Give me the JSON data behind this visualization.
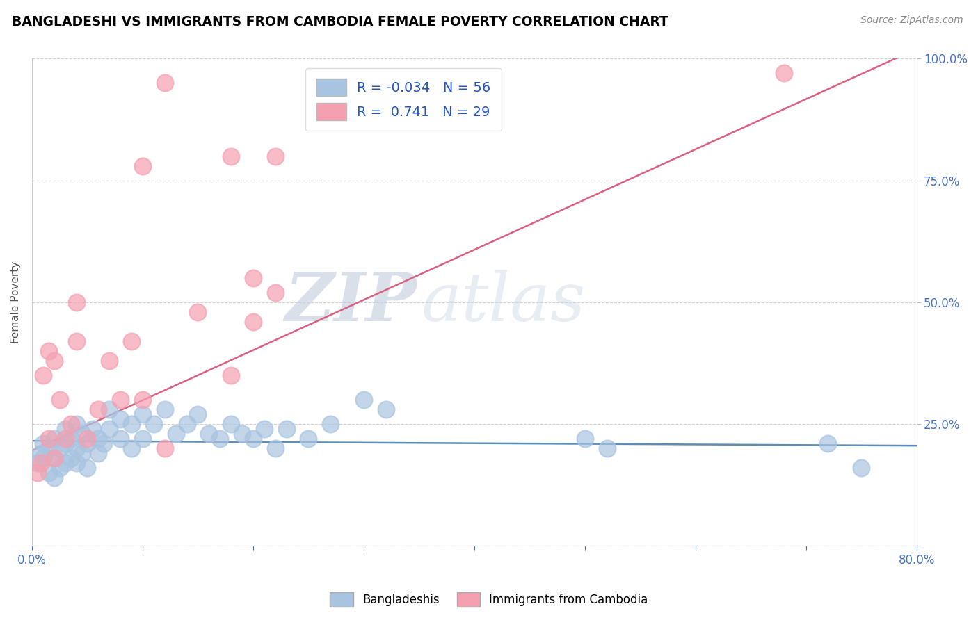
{
  "title": "BANGLADESHI VS IMMIGRANTS FROM CAMBODIA FEMALE POVERTY CORRELATION CHART",
  "source": "Source: ZipAtlas.com",
  "ylabel": "Female Poverty",
  "xlim": [
    0.0,
    0.8
  ],
  "ylim": [
    0.0,
    1.0
  ],
  "xticks": [
    0.0,
    0.1,
    0.2,
    0.3,
    0.4,
    0.5,
    0.6,
    0.7,
    0.8
  ],
  "xticklabels": [
    "0.0%",
    "",
    "",
    "",
    "",
    "",
    "",
    "",
    "80.0%"
  ],
  "ytick_positions": [
    0.0,
    0.25,
    0.5,
    0.75,
    1.0
  ],
  "yticklabels_right": [
    "",
    "25.0%",
    "50.0%",
    "75.0%",
    "100.0%"
  ],
  "blue_R": -0.034,
  "blue_N": 56,
  "pink_R": 0.741,
  "pink_N": 29,
  "blue_color": "#a8c4e0",
  "pink_color": "#f4a0b0",
  "blue_line_color": "#5b8db8",
  "pink_line_color": "#d96080",
  "legend_blue_label": "Bangladeshis",
  "legend_pink_label": "Immigrants from Cambodia",
  "watermark_zip": "ZIP",
  "watermark_atlas": "atlas",
  "blue_line_y0": 0.215,
  "blue_line_y1": 0.205,
  "pink_line_y0": 0.195,
  "pink_line_y1": 1.02,
  "blue_scatter_x": [
    0.005,
    0.008,
    0.01,
    0.01,
    0.015,
    0.015,
    0.02,
    0.02,
    0.02,
    0.025,
    0.025,
    0.03,
    0.03,
    0.03,
    0.035,
    0.035,
    0.04,
    0.04,
    0.04,
    0.045,
    0.045,
    0.05,
    0.05,
    0.055,
    0.06,
    0.06,
    0.065,
    0.07,
    0.07,
    0.08,
    0.08,
    0.09,
    0.09,
    0.1,
    0.1,
    0.11,
    0.12,
    0.13,
    0.14,
    0.15,
    0.16,
    0.17,
    0.18,
    0.19,
    0.2,
    0.21,
    0.22,
    0.23,
    0.25,
    0.27,
    0.3,
    0.32,
    0.5,
    0.52,
    0.72,
    0.75
  ],
  "blue_scatter_y": [
    0.17,
    0.19,
    0.21,
    0.18,
    0.15,
    0.2,
    0.18,
    0.22,
    0.14,
    0.16,
    0.2,
    0.17,
    0.21,
    0.24,
    0.18,
    0.22,
    0.2,
    0.17,
    0.25,
    0.19,
    0.23,
    0.16,
    0.21,
    0.24,
    0.22,
    0.19,
    0.21,
    0.28,
    0.24,
    0.26,
    0.22,
    0.2,
    0.25,
    0.22,
    0.27,
    0.25,
    0.28,
    0.23,
    0.25,
    0.27,
    0.23,
    0.22,
    0.25,
    0.23,
    0.22,
    0.24,
    0.2,
    0.24,
    0.22,
    0.25,
    0.3,
    0.28,
    0.22,
    0.2,
    0.21,
    0.16
  ],
  "pink_scatter_x": [
    0.005,
    0.008,
    0.01,
    0.015,
    0.015,
    0.02,
    0.02,
    0.025,
    0.03,
    0.035,
    0.04,
    0.04,
    0.05,
    0.06,
    0.07,
    0.08,
    0.09,
    0.1,
    0.12,
    0.15,
    0.18,
    0.2,
    0.22,
    0.22,
    0.18,
    0.2,
    0.1,
    0.12,
    0.68
  ],
  "pink_scatter_y": [
    0.15,
    0.17,
    0.35,
    0.22,
    0.4,
    0.18,
    0.38,
    0.3,
    0.22,
    0.25,
    0.42,
    0.5,
    0.22,
    0.28,
    0.38,
    0.3,
    0.42,
    0.3,
    0.2,
    0.48,
    0.35,
    0.46,
    0.8,
    0.52,
    0.8,
    0.55,
    0.78,
    0.95,
    0.97
  ]
}
